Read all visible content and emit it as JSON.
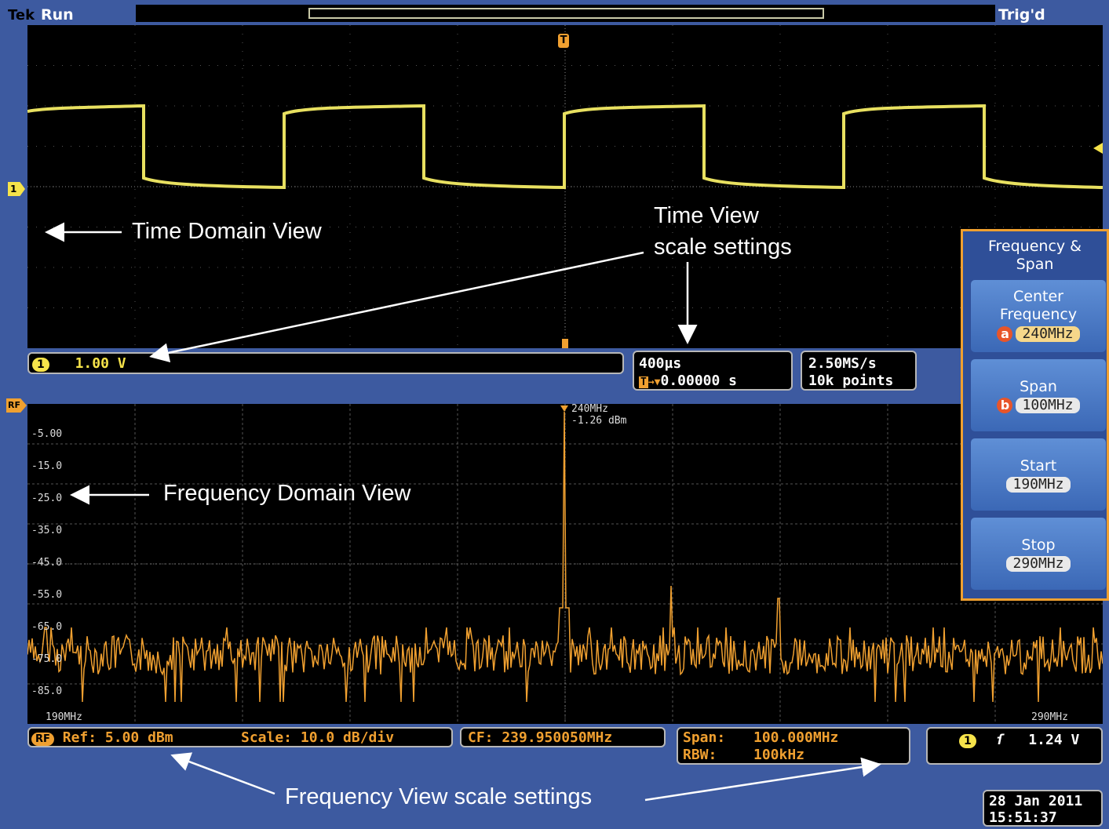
{
  "header": {
    "brand": "Tek",
    "run_state": "Run",
    "trigger_state": "Trig'd"
  },
  "time_view": {
    "channel_badge": "1",
    "vertical_scale": "1.00 V",
    "timebase": "400µs",
    "trigger_position": "0.00000 s",
    "sample_rate": "2.50MS/s",
    "record_length": "10k points",
    "trigger_marker": "T",
    "channel_marker": "1"
  },
  "freq_view": {
    "rf_marker": "RF",
    "y_labels": [
      "-5.00",
      "-15.0",
      "-25.0",
      "-35.0",
      "-45.0",
      "-55.0",
      "-65.0",
      "-75.0",
      "-85.0"
    ],
    "start_label": "190MHz",
    "stop_label": "290MHz",
    "peak_freq": "240MHz",
    "peak_level": "-1.26 dBm",
    "rf_badge": "RF",
    "ref": "Ref: 5.00 dBm",
    "scale": "Scale: 10.0 dB/div",
    "cf": "CF: 239.950050MHz",
    "span_label": "Span:",
    "span_value": "100.000MHz",
    "rbw_label": "RBW:",
    "rbw_value": "100kHz",
    "trigger_channel": "1",
    "trigger_level": "1.24 V"
  },
  "menu": {
    "title": "Frequency & Span",
    "center_label": "Center Frequency",
    "center_letter": "a",
    "center_value": "240MHz",
    "span_label": "Span",
    "span_letter": "b",
    "span_value": "100MHz",
    "start_label": "Start",
    "start_value": "190MHz",
    "stop_label": "Stop",
    "stop_value": "290MHz"
  },
  "datetime": {
    "date": "28 Jan 2011",
    "time": "15:51:37"
  },
  "annotations": {
    "time_domain": "Time Domain View",
    "time_scale_l1": "Time View",
    "time_scale_l2": "scale settings",
    "freq_domain": "Frequency Domain View",
    "freq_scale": "Frequency View scale settings"
  },
  "colors": {
    "time_trace": "#e8e060",
    "freq_trace": "#f0a030",
    "frame": "#3d5aa0",
    "menu_border": "#f0a030"
  }
}
